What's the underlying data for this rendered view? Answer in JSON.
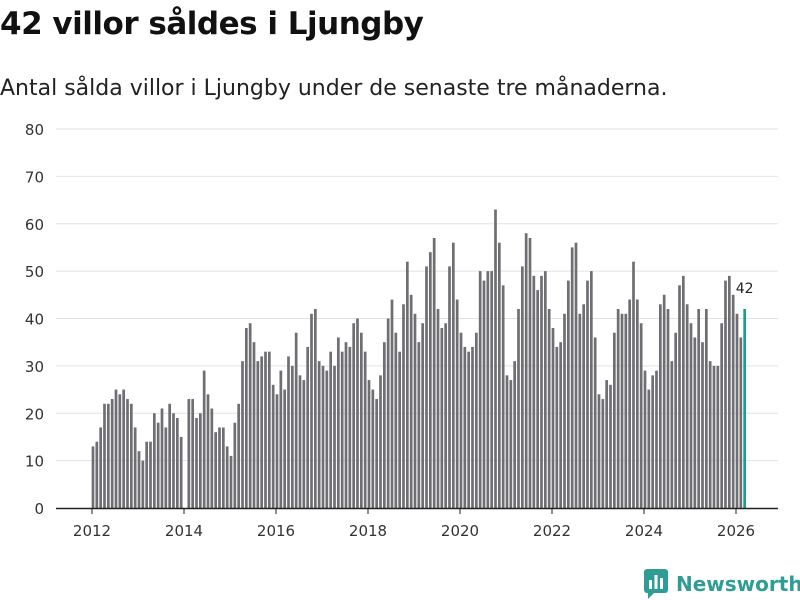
{
  "title": "42 villor såldes i Ljungby",
  "subtitle": "Antal sålda villor i Ljungby under de senaste tre månaderna.",
  "brand": {
    "name": "Newsworthy",
    "color": "#2f9d94",
    "icon": "newsworthy-logo-icon"
  },
  "colors": {
    "bar": "#6e6e73",
    "highlight": "#1a9e93",
    "grid": "#e2e2e2",
    "axis": "#222222"
  },
  "chart_data": {
    "type": "bar",
    "title": "42 villor såldes i Ljungby",
    "xlabel": "",
    "ylabel": "",
    "ylim": [
      0,
      80
    ],
    "yticks": [
      0,
      10,
      20,
      30,
      40,
      50,
      60,
      70,
      80
    ],
    "xticks": [
      "2012",
      "2014",
      "2016",
      "2018",
      "2020",
      "2022",
      "2024",
      "2026"
    ],
    "start": "2012-01",
    "series": [
      {
        "name": "Sålda villor",
        "values": [
          13,
          14,
          17,
          22,
          22,
          23,
          25,
          24,
          25,
          23,
          22,
          17,
          12,
          10,
          14,
          14,
          20,
          18,
          21,
          17,
          22,
          20,
          19,
          15,
          0,
          23,
          23,
          19,
          20,
          29,
          24,
          21,
          16,
          17,
          17,
          13,
          11,
          18,
          22,
          31,
          38,
          39,
          35,
          31,
          32,
          33,
          33,
          26,
          24,
          29,
          25,
          32,
          30,
          37,
          28,
          27,
          34,
          41,
          42,
          31,
          30,
          29,
          33,
          30,
          36,
          33,
          35,
          34,
          39,
          40,
          37,
          33,
          27,
          25,
          23,
          28,
          35,
          40,
          44,
          37,
          33,
          43,
          52,
          45,
          41,
          35,
          39,
          51,
          54,
          57,
          42,
          38,
          39,
          51,
          56,
          44,
          37,
          34,
          33,
          34,
          37,
          50,
          48,
          50,
          50,
          63,
          56,
          47,
          28,
          27,
          31,
          42,
          51,
          58,
          57,
          49,
          46,
          49,
          50,
          42,
          38,
          34,
          35,
          41,
          48,
          55,
          56,
          41,
          43,
          48,
          50,
          36,
          24,
          23,
          27,
          26,
          37,
          42,
          41,
          41,
          44,
          52,
          44,
          39,
          29,
          25,
          28,
          29,
          43,
          45,
          42,
          31,
          37,
          47,
          49,
          43,
          39,
          36,
          42,
          35,
          42,
          31,
          30,
          30,
          39,
          48,
          49,
          45,
          41,
          36,
          42
        ]
      }
    ],
    "highlight_label": "42",
    "annotations": [
      {
        "text": "42",
        "target": "last"
      }
    ]
  }
}
